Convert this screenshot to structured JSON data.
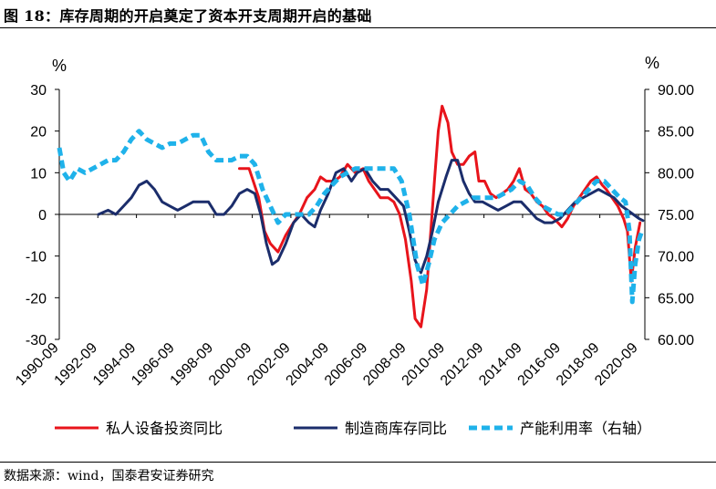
{
  "figure": {
    "title": "图 18：库存周期的开启奠定了资本开支周期开启的基础",
    "source": "数据来源：wind，国泰君安证券研究"
  },
  "colors": {
    "red": "#e8141b",
    "navy": "#1b2d6b",
    "cyan": "#1fb2ea"
  },
  "chart_data": {
    "type": "line",
    "title": "",
    "y_left": {
      "unit": "%",
      "range": [
        -30,
        30
      ],
      "ticks": [
        -30,
        -20,
        -10,
        0,
        10,
        20,
        30
      ]
    },
    "y_right": {
      "unit": "%",
      "range": [
        60,
        90
      ],
      "ticks": [
        "60.00",
        "65.00",
        "70.00",
        "75.00",
        "80.00",
        "85.00",
        "90.00"
      ]
    },
    "x_range": [
      1990.67,
      2021.0
    ],
    "x_ticks": [
      "1990-09",
      "1992-09",
      "1994-09",
      "1996-09",
      "1998-09",
      "2000-09",
      "2002-09",
      "2004-09",
      "2006-09",
      "2008-09",
      "2010-09",
      "2012-09",
      "2014-09",
      "2016-09",
      "2018-09",
      "2020-09"
    ],
    "legend": [
      "私人设备投资同比",
      "制造商库存同比",
      "产能利用率（右轴）"
    ],
    "series": [
      {
        "name": "私人设备投资同比",
        "axis": "left",
        "color": "red",
        "style": "solid",
        "points": [
          [
            2000.0,
            11
          ],
          [
            2000.5,
            11
          ],
          [
            2001.0,
            4
          ],
          [
            2001.3,
            -4
          ],
          [
            2001.6,
            -7
          ],
          [
            2002.0,
            -9
          ],
          [
            2002.4,
            -5
          ],
          [
            2002.8,
            -2
          ],
          [
            2003.1,
            0
          ],
          [
            2003.5,
            4
          ],
          [
            2003.9,
            6
          ],
          [
            2004.2,
            9
          ],
          [
            2004.5,
            8
          ],
          [
            2004.9,
            8
          ],
          [
            2005.2,
            9
          ],
          [
            2005.6,
            12
          ],
          [
            2006.0,
            10
          ],
          [
            2006.4,
            11
          ],
          [
            2006.7,
            8
          ],
          [
            2007.0,
            6
          ],
          [
            2007.3,
            4
          ],
          [
            2007.7,
            4
          ],
          [
            2008.0,
            3
          ],
          [
            2008.3,
            0
          ],
          [
            2008.6,
            -6
          ],
          [
            2008.9,
            -16
          ],
          [
            2009.1,
            -25
          ],
          [
            2009.4,
            -27
          ],
          [
            2009.7,
            -18
          ],
          [
            2009.9,
            -5
          ],
          [
            2010.1,
            8
          ],
          [
            2010.3,
            20
          ],
          [
            2010.5,
            26
          ],
          [
            2010.8,
            22
          ],
          [
            2011.0,
            15
          ],
          [
            2011.3,
            12
          ],
          [
            2011.6,
            12
          ],
          [
            2011.9,
            14
          ],
          [
            2012.2,
            15
          ],
          [
            2012.4,
            8
          ],
          [
            2012.7,
            8
          ],
          [
            2013.0,
            5
          ],
          [
            2013.3,
            4
          ],
          [
            2013.6,
            5
          ],
          [
            2013.9,
            6
          ],
          [
            2014.2,
            8
          ],
          [
            2014.5,
            11
          ],
          [
            2014.8,
            6
          ],
          [
            2015.1,
            5
          ],
          [
            2015.4,
            3
          ],
          [
            2015.7,
            2
          ],
          [
            2016.0,
            0
          ],
          [
            2016.3,
            -1
          ],
          [
            2016.7,
            -3
          ],
          [
            2017.0,
            -1
          ],
          [
            2017.3,
            2
          ],
          [
            2017.6,
            4
          ],
          [
            2017.9,
            6
          ],
          [
            2018.2,
            8
          ],
          [
            2018.5,
            9
          ],
          [
            2018.8,
            7
          ],
          [
            2019.0,
            6
          ],
          [
            2019.3,
            4
          ],
          [
            2019.6,
            2
          ],
          [
            2019.9,
            -1
          ],
          [
            2020.1,
            -4
          ],
          [
            2020.3,
            -16
          ],
          [
            2020.5,
            -8
          ],
          [
            2020.75,
            -2
          ]
        ]
      },
      {
        "name": "制造商库存同比",
        "axis": "left",
        "color": "navy",
        "style": "solid",
        "points": [
          [
            1992.7,
            0
          ],
          [
            1993.2,
            1
          ],
          [
            1993.6,
            0
          ],
          [
            1994.0,
            2
          ],
          [
            1994.4,
            4
          ],
          [
            1994.8,
            7
          ],
          [
            1995.2,
            8
          ],
          [
            1995.6,
            6
          ],
          [
            1996.0,
            3
          ],
          [
            1996.4,
            2
          ],
          [
            1996.8,
            1
          ],
          [
            1997.2,
            2
          ],
          [
            1997.6,
            3
          ],
          [
            1998.0,
            3
          ],
          [
            1998.4,
            3
          ],
          [
            1998.8,
            0
          ],
          [
            1999.2,
            0
          ],
          [
            1999.6,
            2
          ],
          [
            2000.0,
            5
          ],
          [
            2000.4,
            6
          ],
          [
            2000.8,
            5
          ],
          [
            2001.1,
            0
          ],
          [
            2001.4,
            -7
          ],
          [
            2001.7,
            -12
          ],
          [
            2002.0,
            -11
          ],
          [
            2002.4,
            -7
          ],
          [
            2002.8,
            -2
          ],
          [
            2003.2,
            0
          ],
          [
            2003.6,
            -2
          ],
          [
            2003.9,
            -3
          ],
          [
            2004.2,
            1
          ],
          [
            2004.6,
            5
          ],
          [
            2005.0,
            10
          ],
          [
            2005.4,
            11
          ],
          [
            2005.8,
            8
          ],
          [
            2006.1,
            10
          ],
          [
            2006.5,
            11
          ],
          [
            2006.9,
            8
          ],
          [
            2007.3,
            6
          ],
          [
            2007.7,
            6
          ],
          [
            2008.1,
            4
          ],
          [
            2008.5,
            2
          ],
          [
            2008.8,
            -4
          ],
          [
            2009.1,
            -11
          ],
          [
            2009.4,
            -14
          ],
          [
            2009.7,
            -10
          ],
          [
            2010.0,
            -4
          ],
          [
            2010.3,
            3
          ],
          [
            2010.7,
            9
          ],
          [
            2011.0,
            13
          ],
          [
            2011.3,
            13
          ],
          [
            2011.6,
            8
          ],
          [
            2011.9,
            5
          ],
          [
            2012.2,
            3
          ],
          [
            2012.6,
            3
          ],
          [
            2013.0,
            2
          ],
          [
            2013.4,
            1
          ],
          [
            2013.8,
            2
          ],
          [
            2014.2,
            3
          ],
          [
            2014.6,
            3
          ],
          [
            2015.0,
            1
          ],
          [
            2015.4,
            -1
          ],
          [
            2015.8,
            -2
          ],
          [
            2016.2,
            -2
          ],
          [
            2016.6,
            -1
          ],
          [
            2017.0,
            1
          ],
          [
            2017.4,
            3
          ],
          [
            2017.8,
            4
          ],
          [
            2018.2,
            5
          ],
          [
            2018.6,
            6
          ],
          [
            2019.0,
            5
          ],
          [
            2019.4,
            4
          ],
          [
            2019.8,
            2
          ],
          [
            2020.1,
            1
          ],
          [
            2020.4,
            0
          ],
          [
            2020.7,
            -1
          ],
          [
            2020.9,
            -1.5
          ]
        ]
      },
      {
        "name": "产能利用率（右轴）",
        "axis": "right",
        "color": "cyan",
        "style": "dashed",
        "points": [
          [
            1990.67,
            83
          ],
          [
            1990.9,
            80
          ],
          [
            1991.2,
            79
          ],
          [
            1991.6,
            80.5
          ],
          [
            1992.0,
            80
          ],
          [
            1992.4,
            80.5
          ],
          [
            1992.8,
            81
          ],
          [
            1993.2,
            81.5
          ],
          [
            1993.6,
            81.5
          ],
          [
            1994.0,
            82.5
          ],
          [
            1994.4,
            84
          ],
          [
            1994.8,
            85
          ],
          [
            1995.2,
            84
          ],
          [
            1995.6,
            83.5
          ],
          [
            1996.0,
            83
          ],
          [
            1996.4,
            83.5
          ],
          [
            1996.8,
            83.5
          ],
          [
            1997.2,
            84
          ],
          [
            1997.6,
            84.5
          ],
          [
            1998.0,
            84.5
          ],
          [
            1998.4,
            82.5
          ],
          [
            1998.8,
            81.5
          ],
          [
            1999.2,
            81.5
          ],
          [
            1999.6,
            81.5
          ],
          [
            2000.0,
            82
          ],
          [
            2000.4,
            82
          ],
          [
            2000.8,
            81
          ],
          [
            2001.2,
            78
          ],
          [
            2001.6,
            76
          ],
          [
            2002.0,
            74
          ],
          [
            2002.4,
            75
          ],
          [
            2002.8,
            75
          ],
          [
            2003.2,
            75
          ],
          [
            2003.6,
            75
          ],
          [
            2004.0,
            76
          ],
          [
            2004.4,
            77.5
          ],
          [
            2004.8,
            78.5
          ],
          [
            2005.2,
            79.5
          ],
          [
            2005.6,
            80
          ],
          [
            2006.0,
            80.5
          ],
          [
            2006.4,
            80.5
          ],
          [
            2006.8,
            80.5
          ],
          [
            2007.2,
            80.5
          ],
          [
            2007.6,
            80.5
          ],
          [
            2008.0,
            80.5
          ],
          [
            2008.4,
            79
          ],
          [
            2008.8,
            75
          ],
          [
            2009.2,
            69
          ],
          [
            2009.5,
            66.5
          ],
          [
            2009.8,
            69
          ],
          [
            2010.1,
            72
          ],
          [
            2010.5,
            74
          ],
          [
            2010.9,
            75
          ],
          [
            2011.3,
            76
          ],
          [
            2011.7,
            76.5
          ],
          [
            2012.1,
            77
          ],
          [
            2012.5,
            77
          ],
          [
            2012.9,
            77
          ],
          [
            2013.3,
            77
          ],
          [
            2013.7,
            77.5
          ],
          [
            2014.1,
            78
          ],
          [
            2014.5,
            79
          ],
          [
            2014.9,
            78.5
          ],
          [
            2015.3,
            77
          ],
          [
            2015.7,
            76
          ],
          [
            2016.1,
            75.5
          ],
          [
            2016.5,
            75
          ],
          [
            2016.9,
            75
          ],
          [
            2017.3,
            76
          ],
          [
            2017.7,
            77
          ],
          [
            2018.1,
            78
          ],
          [
            2018.5,
            79
          ],
          [
            2018.9,
            79
          ],
          [
            2019.3,
            78
          ],
          [
            2019.7,
            77
          ],
          [
            2020.0,
            76.5
          ],
          [
            2020.2,
            73
          ],
          [
            2020.35,
            64.5
          ],
          [
            2020.5,
            69
          ],
          [
            2020.7,
            72
          ],
          [
            2020.85,
            73
          ]
        ]
      }
    ]
  }
}
